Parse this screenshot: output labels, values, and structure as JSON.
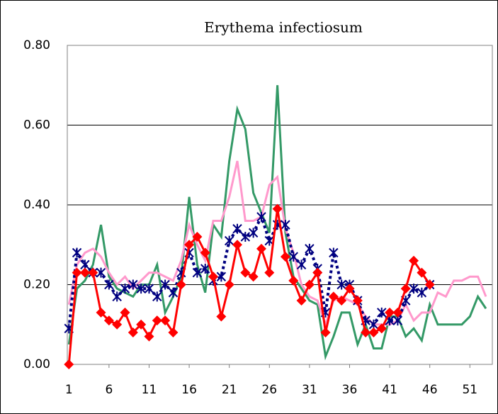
{
  "chart_data": {
    "type": "line",
    "title": "Erythema infectiosum",
    "x": [
      1,
      2,
      3,
      4,
      5,
      6,
      7,
      8,
      9,
      10,
      11,
      12,
      13,
      14,
      15,
      16,
      17,
      18,
      19,
      20,
      21,
      22,
      23,
      24,
      25,
      26,
      27,
      28,
      29,
      30,
      31,
      32,
      33,
      34,
      35,
      36,
      37,
      38,
      39,
      40,
      41,
      42,
      43,
      44,
      45,
      46,
      47,
      48,
      49,
      50,
      51,
      52,
      53
    ],
    "xlim": [
      0.8,
      53.8
    ],
    "xticks": [
      1,
      6,
      11,
      16,
      21,
      26,
      31,
      36,
      41,
      46,
      51
    ],
    "ylim": [
      0,
      0.8
    ],
    "yticks": [
      {
        "value": 0,
        "label": "0.00"
      },
      {
        "value": 0.2,
        "label": "0.20"
      },
      {
        "value": 0.4,
        "label": "0.40"
      },
      {
        "value": 0.6,
        "label": "0.60"
      },
      {
        "value": 0.8,
        "label": "0.80"
      }
    ],
    "grid": true,
    "series": [
      {
        "color": "#339966",
        "marker": "none",
        "dash": false,
        "values": [
          0.05,
          0.19,
          0.21,
          0.25,
          0.35,
          0.22,
          0.19,
          0.18,
          0.17,
          0.2,
          0.2,
          0.25,
          0.13,
          0.17,
          0.22,
          0.42,
          0.25,
          0.18,
          0.35,
          0.32,
          0.51,
          0.64,
          0.59,
          0.43,
          0.38,
          0.33,
          0.7,
          0.33,
          0.22,
          0.19,
          0.16,
          0.15,
          0.02,
          0.07,
          0.13,
          0.13,
          0.05,
          0.1,
          0.04,
          0.04,
          0.12,
          0.12,
          0.07,
          0.09,
          0.06,
          0.15,
          0.1,
          0.1,
          0.1,
          0.1,
          0.12,
          0.17,
          0.14
        ]
      },
      {
        "color": "#ff99cc",
        "marker": "none",
        "dash": false,
        "values": [
          0.15,
          0.25,
          0.28,
          0.29,
          0.27,
          0.23,
          0.2,
          0.22,
          0.19,
          0.21,
          0.23,
          0.23,
          0.22,
          0.21,
          0.26,
          0.35,
          0.3,
          0.26,
          0.36,
          0.36,
          0.42,
          0.51,
          0.36,
          0.36,
          0.37,
          0.45,
          0.47,
          0.34,
          0.28,
          0.2,
          0.17,
          0.16,
          0.1,
          0.16,
          0.17,
          0.16,
          0.15,
          0.12,
          0.1,
          0.1,
          0.1,
          0.11,
          0.15,
          0.11,
          0.13,
          0.13,
          0.18,
          0.17,
          0.21,
          0.21,
          0.22,
          0.22,
          0.17
        ]
      },
      {
        "color": "#000080",
        "marker": "asterisk",
        "dash": true,
        "values": [
          0.09,
          0.28,
          0.25,
          0.23,
          0.23,
          0.2,
          0.17,
          0.19,
          0.2,
          0.19,
          0.19,
          0.17,
          0.2,
          0.18,
          0.23,
          0.28,
          0.23,
          0.24,
          0.21,
          0.22,
          0.31,
          0.34,
          0.32,
          0.33,
          0.37,
          0.31,
          0.35,
          0.35,
          0.27,
          0.25,
          0.29,
          0.24,
          0.13,
          0.28,
          0.2,
          0.2,
          0.16,
          0.11,
          0.1,
          0.13,
          0.11,
          0.11,
          0.16,
          0.19,
          0.18,
          0.2,
          null,
          null,
          null,
          null,
          null,
          null,
          null
        ]
      },
      {
        "color": "#ff0000",
        "marker": "diamond",
        "dash": false,
        "values": [
          0.0,
          0.23,
          0.23,
          0.23,
          0.13,
          0.11,
          0.1,
          0.13,
          0.08,
          0.1,
          0.07,
          0.11,
          0.11,
          0.08,
          0.2,
          0.3,
          0.32,
          0.28,
          0.22,
          0.12,
          0.2,
          0.3,
          0.23,
          0.22,
          0.29,
          0.23,
          0.39,
          0.27,
          0.21,
          0.16,
          0.2,
          0.23,
          0.08,
          0.17,
          0.16,
          0.19,
          0.16,
          0.08,
          0.08,
          0.09,
          0.13,
          0.13,
          0.19,
          0.26,
          0.23,
          0.2,
          null,
          null,
          null,
          null,
          null,
          null,
          null
        ]
      }
    ]
  }
}
